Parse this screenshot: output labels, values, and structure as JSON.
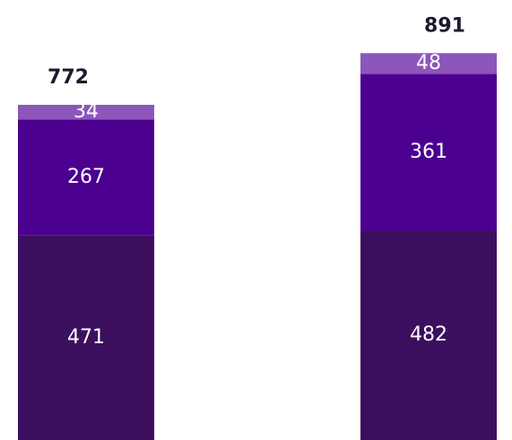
{
  "chart_data": {
    "type": "stacked-bar",
    "categories": [
      null,
      null
    ],
    "series": [
      {
        "color": "#3c0f5e",
        "values": [
          471,
          482
        ]
      },
      {
        "color": "#4c0090",
        "values": [
          267,
          361
        ]
      },
      {
        "color": "#8d56ba",
        "values": [
          34,
          48
        ]
      }
    ],
    "totals": [
      772,
      891
    ],
    "ylim": [
      0,
      1000
    ]
  }
}
